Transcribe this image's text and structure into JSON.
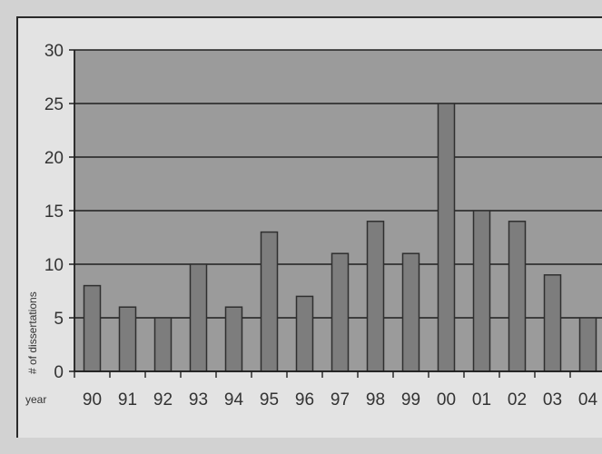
{
  "chart_data": {
    "type": "bar",
    "xlabel": "year",
    "ylabel": "# of dissertations",
    "categories": [
      "90",
      "91",
      "92",
      "93",
      "94",
      "95",
      "96",
      "97",
      "98",
      "99",
      "00",
      "01",
      "02",
      "03",
      "04"
    ],
    "values": [
      8,
      6,
      5,
      10,
      6,
      13,
      7,
      11,
      14,
      11,
      25,
      15,
      14,
      9,
      5
    ],
    "ylim": [
      0,
      30
    ],
    "yticks": [
      "0",
      "5",
      "10",
      "15",
      "20",
      "25",
      "30"
    ],
    "grid": true,
    "colors": {
      "plot_background": "#9b9b9b",
      "bar_fill": "#7d7d7d",
      "bar_stroke": "#2f2f2f",
      "gridline": "#1f1f1f",
      "frame_background": "#e3e3e3"
    }
  }
}
